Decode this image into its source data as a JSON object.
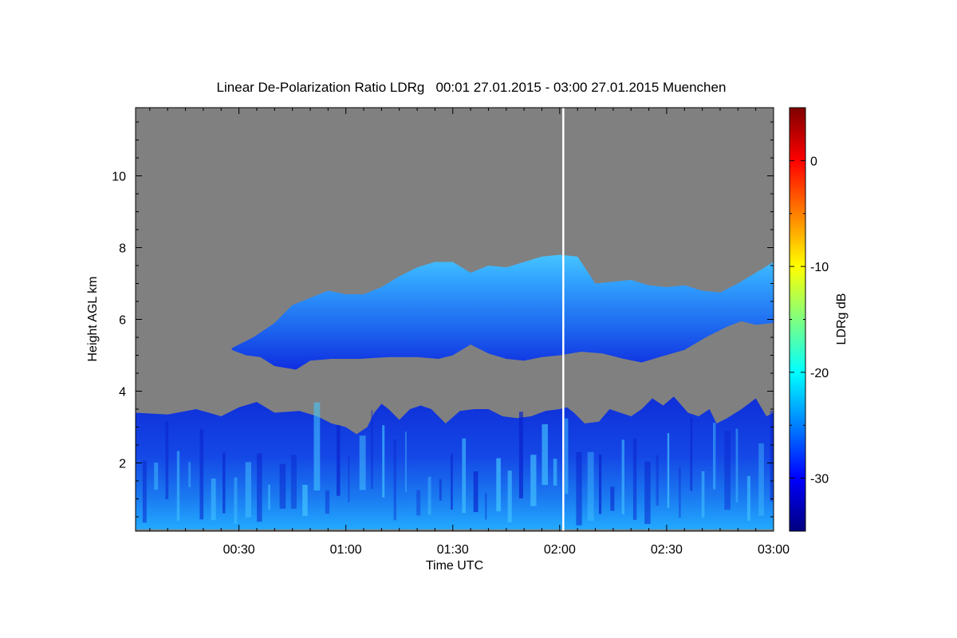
{
  "chart_data": {
    "type": "heatmap",
    "title": "Linear De-Polarization Ratio LDRg   00:01 27.01.2015 - 03:00 27.01.2015 Muenchen",
    "xlabel": "Time UTC",
    "ylabel": "Height AGL km",
    "xlim_minutes": [
      1,
      180
    ],
    "ylim": [
      0.1,
      11.9
    ],
    "x_ticks": [
      {
        "minutes": 30,
        "label": "00:30"
      },
      {
        "minutes": 60,
        "label": "01:00"
      },
      {
        "minutes": 90,
        "label": "01:30"
      },
      {
        "minutes": 120,
        "label": "02:00"
      },
      {
        "minutes": 150,
        "label": "02:30"
      },
      {
        "minutes": 180,
        "label": "03:00"
      }
    ],
    "y_ticks": [
      2,
      4,
      6,
      8,
      10
    ],
    "background_color": "#808080",
    "colorbar": {
      "label": "LDRg dB",
      "range": [
        -35,
        5
      ],
      "ticks": [
        0,
        -10,
        -20,
        -30
      ],
      "colormap": "jet"
    },
    "gap_line_minutes": 121,
    "layers": [
      {
        "name_desc": "lower",
        "x_start": 1,
        "x_end": 180,
        "base": [
          [
            1,
            0.15
          ],
          [
            180,
            0.15
          ]
        ],
        "top": [
          [
            1,
            3.4
          ],
          [
            10,
            3.35
          ],
          [
            18,
            3.5
          ],
          [
            25,
            3.3
          ],
          [
            30,
            3.55
          ],
          [
            35,
            3.7
          ],
          [
            40,
            3.4
          ],
          [
            47,
            3.45
          ],
          [
            52,
            3.3
          ],
          [
            56,
            3.1
          ],
          [
            60,
            3.0
          ],
          [
            63,
            2.8
          ],
          [
            66,
            3.0
          ],
          [
            68,
            3.4
          ],
          [
            70,
            3.65
          ],
          [
            72,
            3.5
          ],
          [
            75,
            3.2
          ],
          [
            78,
            3.5
          ],
          [
            81,
            3.6
          ],
          [
            84,
            3.5
          ],
          [
            88,
            3.1
          ],
          [
            92,
            3.45
          ],
          [
            96,
            3.5
          ],
          [
            100,
            3.5
          ],
          [
            104,
            3.3
          ],
          [
            108,
            3.25
          ],
          [
            112,
            3.3
          ],
          [
            116,
            3.45
          ],
          [
            120,
            3.5
          ],
          [
            122,
            3.55
          ],
          [
            124,
            3.4
          ],
          [
            127,
            3.1
          ],
          [
            131,
            3.15
          ],
          [
            134,
            3.5
          ],
          [
            137,
            3.4
          ],
          [
            140,
            3.3
          ],
          [
            143,
            3.5
          ],
          [
            146,
            3.8
          ],
          [
            149,
            3.6
          ],
          [
            152,
            3.85
          ],
          [
            156,
            3.4
          ],
          [
            159,
            3.3
          ],
          [
            162,
            3.5
          ],
          [
            164,
            3.1
          ],
          [
            167,
            3.25
          ],
          [
            171,
            3.5
          ],
          [
            175,
            3.8
          ],
          [
            178,
            3.3
          ],
          [
            180,
            3.4
          ]
        ]
      },
      {
        "name_desc": "upper",
        "x_start": 28,
        "x_end": 180,
        "base": [
          [
            28,
            5.15
          ],
          [
            32,
            5.0
          ],
          [
            36,
            4.95
          ],
          [
            40,
            4.7
          ],
          [
            46,
            4.6
          ],
          [
            50,
            4.85
          ],
          [
            56,
            4.9
          ],
          [
            64,
            4.9
          ],
          [
            72,
            4.95
          ],
          [
            80,
            4.95
          ],
          [
            86,
            4.9
          ],
          [
            90,
            5.0
          ],
          [
            95,
            5.3
          ],
          [
            100,
            5.05
          ],
          [
            105,
            4.9
          ],
          [
            110,
            4.85
          ],
          [
            115,
            4.95
          ],
          [
            120,
            5.0
          ],
          [
            126,
            5.1
          ],
          [
            132,
            5.05
          ],
          [
            138,
            4.9
          ],
          [
            143,
            4.8
          ],
          [
            148,
            4.95
          ],
          [
            155,
            5.15
          ],
          [
            161,
            5.5
          ],
          [
            167,
            5.8
          ],
          [
            171,
            5.95
          ],
          [
            175,
            5.85
          ],
          [
            180,
            5.9
          ]
        ],
        "top": [
          [
            28,
            5.2
          ],
          [
            34,
            5.5
          ],
          [
            40,
            5.9
          ],
          [
            45,
            6.4
          ],
          [
            50,
            6.6
          ],
          [
            55,
            6.8
          ],
          [
            60,
            6.7
          ],
          [
            65,
            6.7
          ],
          [
            70,
            6.9
          ],
          [
            75,
            7.2
          ],
          [
            80,
            7.45
          ],
          [
            85,
            7.6
          ],
          [
            90,
            7.6
          ],
          [
            95,
            7.3
          ],
          [
            100,
            7.5
          ],
          [
            105,
            7.45
          ],
          [
            110,
            7.6
          ],
          [
            115,
            7.75
          ],
          [
            120,
            7.8
          ],
          [
            125,
            7.75
          ],
          [
            130,
            7.0
          ],
          [
            135,
            7.05
          ],
          [
            140,
            7.1
          ],
          [
            145,
            6.95
          ],
          [
            150,
            6.9
          ],
          [
            155,
            6.95
          ],
          [
            160,
            6.8
          ],
          [
            165,
            6.75
          ],
          [
            170,
            7.0
          ],
          [
            175,
            7.3
          ],
          [
            180,
            7.6
          ]
        ]
      }
    ],
    "high_layer_segments": [
      {
        "x_start": 34,
        "x_end": 37,
        "top": 5.7
      }
    ]
  }
}
